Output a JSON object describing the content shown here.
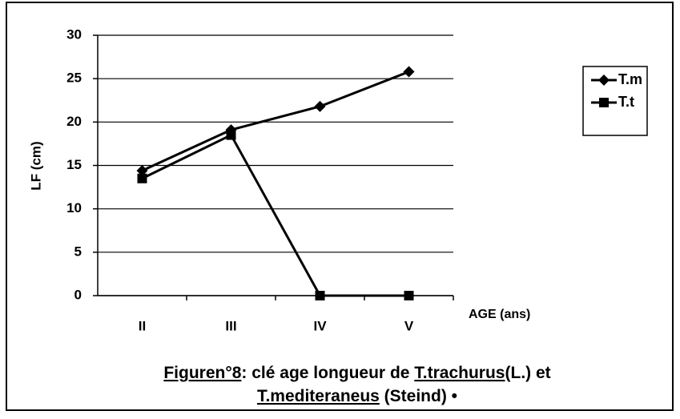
{
  "chart_data": {
    "type": "line",
    "x_label": "AGE (ans)",
    "y_label": "LF (cm)",
    "categories": [
      "II",
      "III",
      "IV",
      "V"
    ],
    "series": [
      {
        "name": "T.m",
        "color": "#000000",
        "marker": "diamond",
        "values": [
          14.4,
          19.1,
          21.8,
          25.8
        ]
      },
      {
        "name": "T.t",
        "color": "#000000",
        "marker": "square",
        "values": [
          13.5,
          18.5,
          0,
          0
        ]
      }
    ],
    "ylim": [
      0,
      30
    ],
    "yticks": [
      0,
      5,
      10,
      15,
      20,
      25,
      30
    ],
    "grid": true,
    "legend": "right",
    "caption": [
      [
        "Figuren°8",
        ": clé age longueur de ",
        "T.trachurus",
        "(L.) et"
      ],
      [
        "T.mediteraneus",
        " (Steind) •"
      ]
    ]
  }
}
